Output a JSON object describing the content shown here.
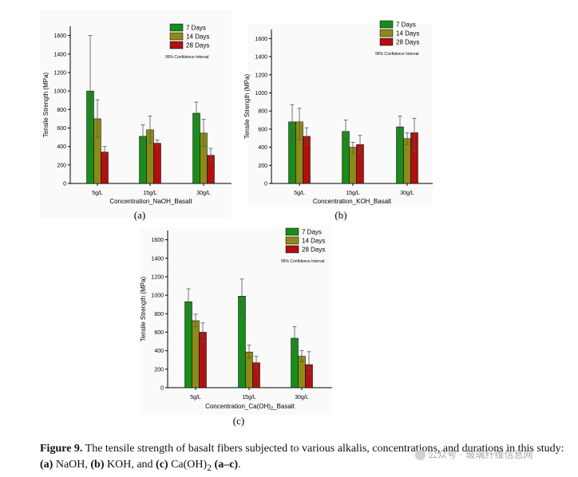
{
  "colors": {
    "7d": "#1a8c1a",
    "14d": "#8b8b1a",
    "28d": "#b01010"
  },
  "chart_data": [
    {
      "type": "bar",
      "label": "(a)",
      "xlabel": "Concentration_NaOH_Basalt",
      "ylabel": "Tensile Strength (MPa)",
      "ylim": [
        0,
        1700
      ],
      "yticks": [
        0,
        200,
        400,
        600,
        800,
        1000,
        1200,
        1400,
        1600
      ],
      "categories": [
        "5g/L",
        "15g/L",
        "30g/L"
      ],
      "legend": {
        "position": "top-right",
        "note": "95% Confidence Interval"
      },
      "series": [
        {
          "name": "7 Days",
          "values": [
            1000,
            510,
            760
          ],
          "err_lo": [
            400,
            380,
            650
          ],
          "err_hi": [
            1600,
            635,
            880
          ]
        },
        {
          "name": "14 Days",
          "values": [
            700,
            580,
            545
          ],
          "err_lo": [
            500,
            440,
            400
          ],
          "err_hi": [
            905,
            730,
            695
          ]
        },
        {
          "name": "28 Days",
          "values": [
            340,
            435,
            305
          ],
          "err_lo": [
            295,
            410,
            225
          ],
          "err_hi": [
            400,
            470,
            380
          ]
        }
      ]
    },
    {
      "type": "bar",
      "label": "(b)",
      "xlabel": "Concentration_KOH_Basalt",
      "ylabel": "Tensile Strength (MPa)",
      "ylim": [
        0,
        1700
      ],
      "yticks": [
        0,
        200,
        400,
        600,
        800,
        1000,
        1200,
        1400,
        1600
      ],
      "categories": [
        "5g/L",
        "15g/L",
        "30g/L"
      ],
      "legend": {
        "position": "top-right",
        "note": "95% Confidence Interval"
      },
      "series": [
        {
          "name": "7 Days",
          "values": [
            680,
            575,
            625
          ],
          "err_lo": [
            420,
            420,
            500
          ],
          "err_hi": [
            870,
            700,
            745
          ]
        },
        {
          "name": "14 Days",
          "values": [
            680,
            400,
            495
          ],
          "err_lo": [
            480,
            330,
            430
          ],
          "err_hi": [
            830,
            455,
            560
          ]
        },
        {
          "name": "28 Days",
          "values": [
            520,
            430,
            560
          ],
          "err_lo": [
            430,
            330,
            360
          ],
          "err_hi": [
            615,
            530,
            720
          ]
        }
      ]
    },
    {
      "type": "bar",
      "label": "(c)",
      "xlabel": "Concentration_Ca(OH)",
      "xlabel_sub": "2",
      "xlabel_tail": "_Basalt",
      "ylabel": "Tensile Strength (MPa)",
      "ylim": [
        0,
        1700
      ],
      "yticks": [
        0,
        200,
        400,
        600,
        800,
        1000,
        1200,
        1400,
        1600
      ],
      "categories": [
        "5g/L",
        "15g/L",
        "30g/L"
      ],
      "legend": {
        "position": "top-right",
        "note": "95% Confidence Interval"
      },
      "series": [
        {
          "name": "7 Days",
          "values": [
            930,
            990,
            535
          ],
          "err_lo": [
            790,
            800,
            400
          ],
          "err_hi": [
            1070,
            1175,
            660
          ]
        },
        {
          "name": "14 Days",
          "values": [
            725,
            385,
            340
          ],
          "err_lo": [
            660,
            320,
            280
          ],
          "err_hi": [
            795,
            460,
            400
          ]
        },
        {
          "name": "28 Days",
          "values": [
            600,
            270,
            250
          ],
          "err_lo": [
            500,
            200,
            150
          ],
          "err_hi": [
            700,
            340,
            390
          ]
        }
      ]
    }
  ],
  "caption": {
    "figure": "Figure 9.",
    "text1": " The tensile strength of basalt fibers subjected to various alkalis, concentrations, and durations in this study: ",
    "a": "(a)",
    "naoh": " NaOH, ",
    "b": "(b)",
    "koh": " KOH, and ",
    "c": "(c)",
    "ca_pre": " Ca(OH)",
    "ca_sub": "2",
    "ca_post": " ",
    "range": "(a–c)",
    "end": "."
  },
  "watermark": "公众号 · 玻璃纤维信息网"
}
